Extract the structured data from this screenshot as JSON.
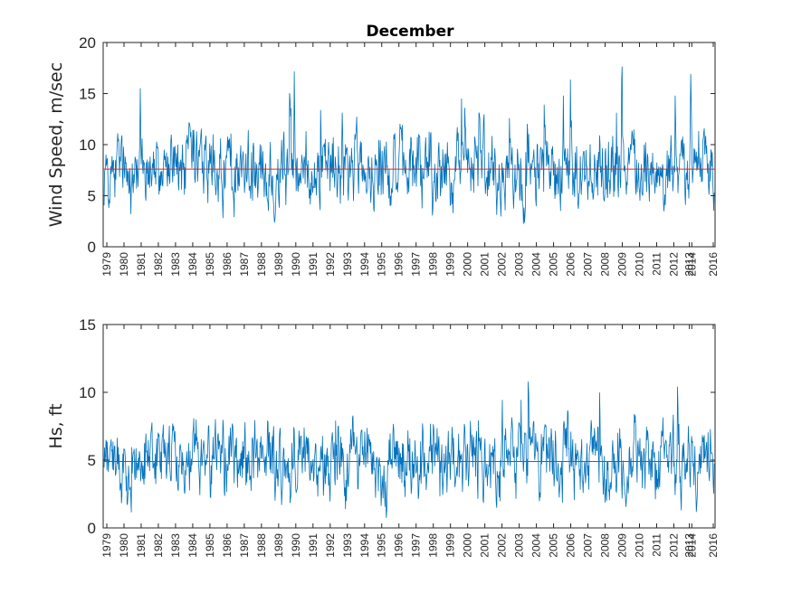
{
  "figure": {
    "title": "December"
  },
  "chart_data": [
    {
      "type": "line",
      "title": "December",
      "xlabel": "",
      "ylabel": "Wind Speed, m/sec",
      "ylim": [
        0,
        20
      ],
      "yticks": [
        "0",
        "5",
        "10",
        "15",
        "20"
      ],
      "xticks": [
        "1979",
        "1980",
        "1981",
        "1982",
        "1983",
        "1984",
        "1985",
        "1986",
        "1987",
        "1988",
        "1989",
        "1990",
        "1991",
        "1992",
        "1993",
        "1994",
        "1995",
        "1996",
        "1997",
        "1998",
        "1999",
        "2000",
        "2001",
        "2002",
        "2003",
        "2004",
        "2005",
        "2006",
        "2007",
        "2008",
        "2009",
        "2010",
        "2011",
        "2012",
        "2013",
        "2014",
        "2016"
      ],
      "series_color": "#0072bd",
      "mean_line": {
        "value": 7.6,
        "color": "#d62728"
      },
      "series": [
        {
          "name": "",
          "y_range_note_min": 0,
          "y_range_note_max": 20
        }
      ]
    },
    {
      "type": "line",
      "title": "",
      "xlabel": "",
      "ylabel": "Hs, ft",
      "ylim": [
        0,
        15
      ],
      "yticks": [
        "0",
        "5",
        "10",
        "15"
      ],
      "xticks": [
        "1979",
        "1980",
        "1981",
        "1982",
        "1983",
        "1984",
        "1985",
        "1986",
        "1987",
        "1988",
        "1989",
        "1990",
        "1991",
        "1992",
        "1993",
        "1994",
        "1995",
        "1996",
        "1997",
        "1998",
        "1999",
        "2000",
        "2001",
        "2002",
        "2003",
        "2004",
        "2005",
        "2006",
        "2007",
        "2008",
        "2009",
        "2010",
        "2011",
        "2012",
        "2013",
        "2014",
        "2016"
      ],
      "series_color": "#0072bd",
      "mean_line": {
        "value": 4.9,
        "color": "#d62728"
      },
      "series": [
        {
          "name": "",
          "y_range_note_min": 0,
          "y_range_note_max": 15
        }
      ]
    }
  ]
}
